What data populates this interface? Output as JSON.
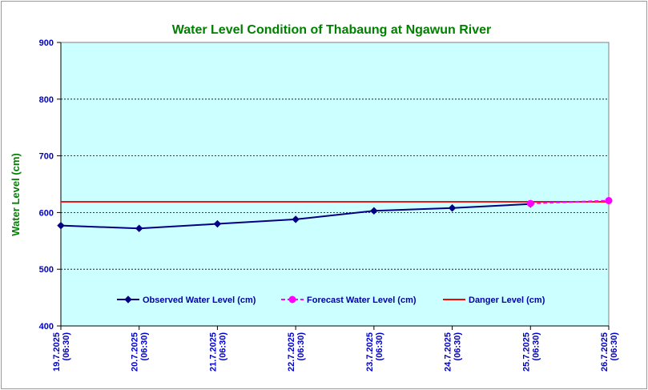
{
  "chart_data": {
    "type": "line",
    "title": "Water Level Condition of Thabaung at Ngawun River",
    "ylabel": "Water Level (cm)",
    "xlabel": "",
    "ylim": [
      400,
      900
    ],
    "yticks": [
      400,
      500,
      600,
      700,
      800,
      900
    ],
    "grid": true,
    "legend_position": "bottom-center",
    "plot_background": "#ccffff",
    "categories": [
      [
        "19.7.2025",
        "(06:30)"
      ],
      [
        "20.7.2025",
        "(06:30)"
      ],
      [
        "21.7.2025",
        "(06:30)"
      ],
      [
        "22.7.2025",
        "(06:30)"
      ],
      [
        "23.7.2025",
        "(06:30)"
      ],
      [
        "24.7.2025",
        "(06:30)"
      ],
      [
        "25.7.2025",
        "(06:30)"
      ],
      [
        "26.7.2025",
        "(06:30)"
      ]
    ],
    "series": [
      {
        "name": "Observed Water Level (cm)",
        "color": "#000080",
        "marker": "diamond",
        "dash": false,
        "values": [
          577,
          572,
          580,
          588,
          603,
          608,
          615,
          null
        ]
      },
      {
        "name": "Forecast Water Level (cm)",
        "color": "#ff00ff",
        "marker": "circle",
        "dash": true,
        "values": [
          null,
          null,
          null,
          null,
          null,
          null,
          616,
          621
        ]
      },
      {
        "name": "Danger Level (cm)",
        "color": "#ff0000",
        "marker": "none",
        "dash": false,
        "values": [
          619,
          619,
          619,
          619,
          619,
          619,
          619,
          619
        ]
      }
    ]
  }
}
